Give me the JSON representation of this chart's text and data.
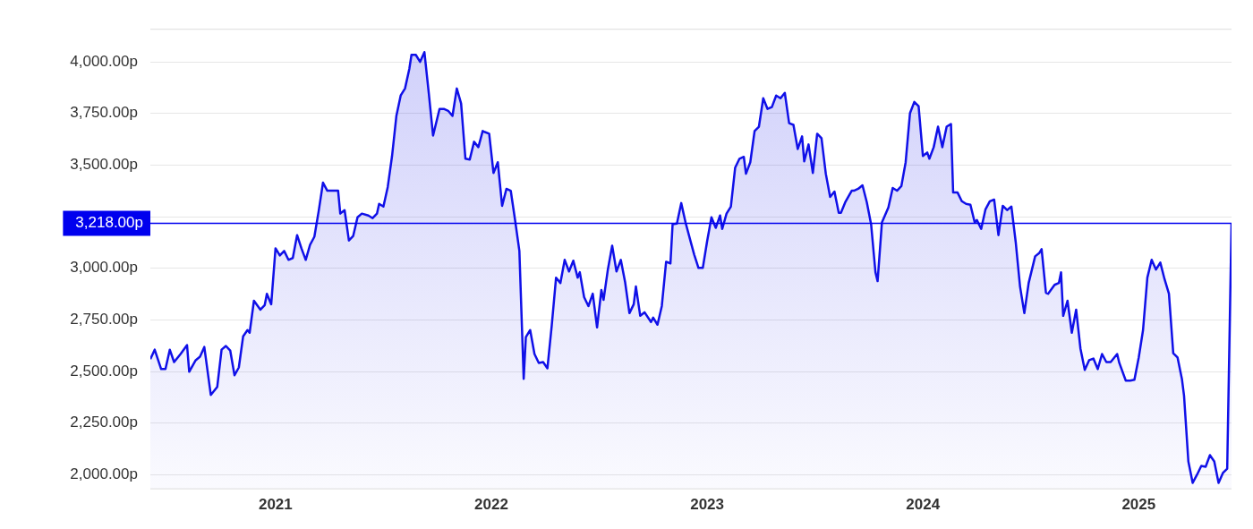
{
  "chart_data": {
    "type": "area",
    "x": [
      2020.42,
      2020.44,
      2020.47,
      2020.49,
      2020.51,
      2020.53,
      2020.56,
      2020.59,
      2020.6,
      2020.63,
      2020.65,
      2020.67,
      2020.7,
      2020.73,
      2020.75,
      2020.77,
      2020.79,
      2020.81,
      2020.83,
      2020.85,
      2020.87,
      2020.88,
      2020.9,
      2020.93,
      2020.95,
      2020.96,
      2020.98,
      2021.0,
      2021.02,
      2021.04,
      2021.06,
      2021.08,
      2021.1,
      2021.12,
      2021.14,
      2021.16,
      2021.18,
      2021.2,
      2021.22,
      2021.24,
      2021.26,
      2021.29,
      2021.3,
      2021.32,
      2021.34,
      2021.36,
      2021.38,
      2021.4,
      2021.43,
      2021.45,
      2021.47,
      2021.48,
      2021.5,
      2021.52,
      2021.54,
      2021.56,
      2021.58,
      2021.6,
      2021.62,
      2021.63,
      2021.65,
      2021.67,
      2021.69,
      2021.71,
      2021.73,
      2021.76,
      2021.78,
      2021.8,
      2021.82,
      2021.84,
      2021.86,
      2021.88,
      2021.9,
      2021.92,
      2021.94,
      2021.96,
      2021.97,
      2021.99,
      2022.01,
      2022.03,
      2022.05,
      2022.07,
      2022.09,
      2022.11,
      2022.13,
      2022.15,
      2022.16,
      2022.18,
      2022.2,
      2022.22,
      2022.24,
      2022.26,
      2022.28,
      2022.3,
      2022.32,
      2022.34,
      2022.36,
      2022.38,
      2022.4,
      2022.41,
      2022.43,
      2022.45,
      2022.47,
      2022.49,
      2022.51,
      2022.52,
      2022.54,
      2022.56,
      2022.58,
      2022.6,
      2022.62,
      2022.64,
      2022.66,
      2022.67,
      2022.69,
      2022.71,
      2022.74,
      2022.75,
      2022.77,
      2022.79,
      2022.81,
      2022.83,
      2022.84,
      2022.86,
      2022.88,
      2022.9,
      2022.92,
      2022.94,
      2022.96,
      2022.98,
      2023.0,
      2023.02,
      2023.04,
      2023.06,
      2023.07,
      2023.09,
      2023.11,
      2023.13,
      2023.15,
      2023.17,
      2023.18,
      2023.2,
      2023.22,
      2023.24,
      2023.26,
      2023.28,
      2023.3,
      2023.32,
      2023.34,
      2023.36,
      2023.38,
      2023.4,
      2023.42,
      2023.44,
      2023.45,
      2023.47,
      2023.49,
      2023.51,
      2023.53,
      2023.55,
      2023.57,
      2023.59,
      2023.61,
      2023.62,
      2023.64,
      2023.67,
      2023.68,
      2023.7,
      2023.72,
      2023.74,
      2023.76,
      2023.78,
      2023.79,
      2023.81,
      2023.84,
      2023.86,
      2023.88,
      2023.9,
      2023.92,
      2023.94,
      2023.96,
      2023.98,
      2024.0,
      2024.02,
      2024.03,
      2024.05,
      2024.07,
      2024.09,
      2024.11,
      2024.13,
      2024.14,
      2024.16,
      2024.18,
      2024.2,
      2024.22,
      2024.24,
      2024.25,
      2024.27,
      2024.29,
      2024.31,
      2024.33,
      2024.35,
      2024.37,
      2024.39,
      2024.41,
      2024.43,
      2024.45,
      2024.47,
      2024.49,
      2024.52,
      2024.54,
      2024.55,
      2024.57,
      2024.58,
      2024.61,
      2024.63,
      2024.64,
      2024.65,
      2024.67,
      2024.69,
      2024.71,
      2024.73,
      2024.75,
      2024.77,
      2024.79,
      2024.81,
      2024.83,
      2024.85,
      2024.87,
      2024.9,
      2024.91,
      2024.94,
      2024.96,
      2024.98,
      2025.0,
      2025.02,
      2025.04,
      2025.06,
      2025.08,
      2025.1,
      2025.12,
      2025.14,
      2025.16,
      2025.18,
      2025.2,
      2025.21,
      2025.23,
      2025.25,
      2025.27,
      2025.29,
      2025.31,
      2025.33,
      2025.35,
      2025.37,
      2025.39,
      2025.41,
      2025.43
    ],
    "series": [
      {
        "color": "#1010e8",
        "values": [
          2560,
          2606,
          2512,
          2512,
          2606,
          2546,
          2585,
          2628,
          2499,
          2555,
          2572,
          2619,
          2387,
          2426,
          2606,
          2624,
          2602,
          2482,
          2520,
          2671,
          2701,
          2688,
          2843,
          2800,
          2822,
          2877,
          2826,
          3097,
          3062,
          3084,
          3041,
          3050,
          3161,
          3097,
          3041,
          3114,
          3153,
          3277,
          3415,
          3376,
          3376,
          3376,
          3265,
          3282,
          3135,
          3157,
          3247,
          3265,
          3256,
          3243,
          3265,
          3312,
          3299,
          3394,
          3544,
          3738,
          3837,
          3871,
          3966,
          4034,
          4034,
          4000,
          4047,
          3850,
          3643,
          3772,
          3772,
          3763,
          3738,
          3871,
          3798,
          3531,
          3527,
          3613,
          3587,
          3665,
          3660,
          3652,
          3462,
          3514,
          3303,
          3385,
          3376,
          3234,
          3084,
          2465,
          2667,
          2701,
          2585,
          2542,
          2546,
          2516,
          2723,
          2955,
          2929,
          3041,
          2985,
          3037,
          2955,
          2981,
          2860,
          2817,
          2877,
          2714,
          2895,
          2847,
          2994,
          3110,
          2985,
          3041,
          2933,
          2783,
          2826,
          2912,
          2770,
          2787,
          2740,
          2761,
          2727,
          2817,
          3032,
          3024,
          3213,
          3217,
          3316,
          3222,
          3144,
          3067,
          3002,
          3002,
          3131,
          3247,
          3196,
          3256,
          3191,
          3265,
          3299,
          3488,
          3531,
          3540,
          3458,
          3514,
          3665,
          3686,
          3824,
          3772,
          3781,
          3837,
          3824,
          3850,
          3703,
          3695,
          3578,
          3639,
          3518,
          3600,
          3462,
          3652,
          3630,
          3458,
          3346,
          3372,
          3269,
          3269,
          3320,
          3376,
          3376,
          3385,
          3402,
          3320,
          3213,
          2981,
          2938,
          3222,
          3295,
          3389,
          3376,
          3398,
          3514,
          3751,
          3806,
          3785,
          3544,
          3561,
          3531,
          3587,
          3686,
          3587,
          3686,
          3699,
          3368,
          3368,
          3325,
          3312,
          3308,
          3222,
          3234,
          3191,
          3286,
          3325,
          3333,
          3161,
          3303,
          3282,
          3299,
          3127,
          2912,
          2783,
          2929,
          3058,
          3075,
          3093,
          2882,
          2877,
          2920,
          2929,
          2981,
          2770,
          2843,
          2688,
          2800,
          2611,
          2508,
          2555,
          2563,
          2512,
          2585,
          2546,
          2546,
          2585,
          2542,
          2456,
          2456,
          2460,
          2568,
          2701,
          2955,
          3041,
          2994,
          3028,
          2946,
          2877,
          2589,
          2568,
          2465,
          2383,
          2065,
          1961,
          2000,
          2043,
          2039,
          2095,
          2065,
          1961,
          2009,
          2030,
          3218
        ]
      }
    ],
    "xlim": [
      2020.42,
      2025.43
    ],
    "xticks": [
      2021,
      2022,
      2023,
      2024,
      2025
    ],
    "ylim": [
      1930,
      4160
    ],
    "yticks": [
      {
        "value": 2000,
        "label": "2,000.00p"
      },
      {
        "value": 2250,
        "label": "2,250.00p"
      },
      {
        "value": 2500,
        "label": "2,500.00p"
      },
      {
        "value": 2750,
        "label": "2,750.00p"
      },
      {
        "value": 3000,
        "label": "3,000.00p"
      },
      {
        "value": 3250,
        "label": null
      },
      {
        "value": 3500,
        "label": "3,500.00p"
      },
      {
        "value": 3750,
        "label": "3,750.00p"
      },
      {
        "value": 4000,
        "label": "4,000.00p"
      }
    ],
    "ref_lines": [
      {
        "axis": "y",
        "value": 3218,
        "label": "3,218.00p",
        "color": "#0000ee"
      }
    ],
    "grid": "y",
    "legend": false,
    "marker": "none",
    "line_style": "solid"
  }
}
